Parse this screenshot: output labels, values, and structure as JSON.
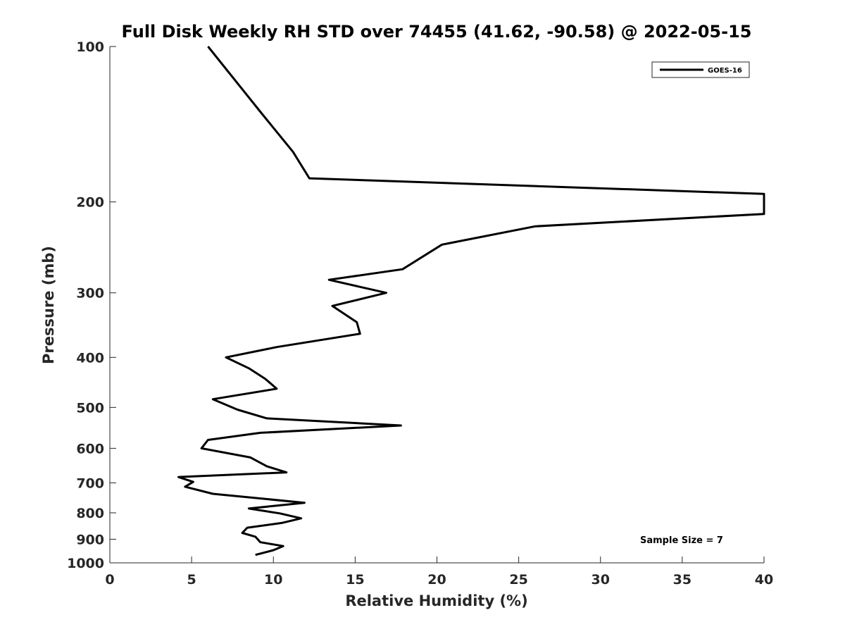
{
  "chart_data": {
    "type": "line",
    "title": "Full Disk Weekly RH STD over 74455 (41.62, -90.58) @ 2022-05-15",
    "xlabel": "Relative Humidity (%)",
    "ylabel": "Pressure (mb)",
    "xlim": [
      0,
      40
    ],
    "ylim": [
      100,
      1000
    ],
    "y_scale": "log",
    "y_reversed": true,
    "grid": false,
    "legend_position": "top-right",
    "x_ticks": [
      "0",
      "5",
      "10",
      "15",
      "20",
      "25",
      "30",
      "35",
      "40"
    ],
    "y_ticks": [
      "100",
      "200",
      "300",
      "400",
      "500",
      "600",
      "700",
      "800",
      "900",
      "1000"
    ],
    "annotation": "Sample Size = 7",
    "series": [
      {
        "name": "GOES-16",
        "color": "#000000",
        "points": [
          [
            6.0,
            100
          ],
          [
            9.3,
            135
          ],
          [
            11.2,
            160
          ],
          [
            12.2,
            180
          ],
          [
            40,
            193
          ],
          [
            40,
            211
          ],
          [
            26.0,
            223
          ],
          [
            20.3,
            242
          ],
          [
            17.9,
            270
          ],
          [
            13.4,
            283
          ],
          [
            16.9,
            300
          ],
          [
            13.6,
            318
          ],
          [
            15.1,
            342
          ],
          [
            15.3,
            360
          ],
          [
            10.2,
            382
          ],
          [
            7.1,
            400
          ],
          [
            8.5,
            420
          ],
          [
            9.5,
            440
          ],
          [
            10.2,
            460
          ],
          [
            6.3,
            482
          ],
          [
            7.8,
            505
          ],
          [
            9.6,
            525
          ],
          [
            17.8,
            542
          ],
          [
            9.2,
            560
          ],
          [
            6.0,
            578
          ],
          [
            5.6,
            600
          ],
          [
            8.6,
            625
          ],
          [
            9.6,
            650
          ],
          [
            10.8,
            668
          ],
          [
            4.2,
            682
          ],
          [
            5.1,
            697
          ],
          [
            4.6,
            712
          ],
          [
            6.3,
            735
          ],
          [
            11.9,
            765
          ],
          [
            8.5,
            785
          ],
          [
            10.4,
            802
          ],
          [
            11.7,
            820
          ],
          [
            10.5,
            837
          ],
          [
            8.4,
            855
          ],
          [
            8.1,
            875
          ],
          [
            8.9,
            890
          ],
          [
            9.2,
            912
          ],
          [
            10.6,
            928
          ],
          [
            10.0,
            945
          ],
          [
            8.9,
            965
          ]
        ]
      }
    ]
  }
}
